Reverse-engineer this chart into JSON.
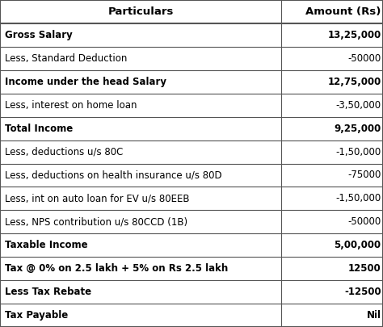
{
  "rows": [
    {
      "label": "Particulars",
      "amount": "Amount (Rs)",
      "bold": true,
      "header": true,
      "label_align": "center",
      "amount_align": "right"
    },
    {
      "label": "Gross Salary",
      "amount": "13,25,000",
      "bold": true,
      "header": false,
      "label_align": "left",
      "amount_align": "right"
    },
    {
      "label": "Less, Standard Deduction",
      "amount": "-50000",
      "bold": false,
      "header": false,
      "label_align": "left",
      "amount_align": "right"
    },
    {
      "label": "Income under the head Salary",
      "amount": "12,75,000",
      "bold": true,
      "header": false,
      "label_align": "left",
      "amount_align": "right"
    },
    {
      "label": "Less, interest on home loan",
      "amount": "-3,50,000",
      "bold": false,
      "header": false,
      "label_align": "left",
      "amount_align": "right"
    },
    {
      "label": "Total Income",
      "amount": "9,25,000",
      "bold": true,
      "header": false,
      "label_align": "left",
      "amount_align": "right"
    },
    {
      "label": "Less, deductions u/s 80C",
      "amount": "-1,50,000",
      "bold": false,
      "header": false,
      "label_align": "left",
      "amount_align": "right"
    },
    {
      "label": "Less, deductions on health insurance u/s 80D",
      "amount": "-75000",
      "bold": false,
      "header": false,
      "label_align": "left",
      "amount_align": "right"
    },
    {
      "label": "Less, int on auto loan for EV u/s 80EEB",
      "amount": "-1,50,000",
      "bold": false,
      "header": false,
      "label_align": "left",
      "amount_align": "right"
    },
    {
      "label": "Less, NPS contribution u/s 80CCD (1B)",
      "amount": "-50000",
      "bold": false,
      "header": false,
      "label_align": "left",
      "amount_align": "right"
    },
    {
      "label": "Taxable Income",
      "amount": "5,00,000",
      "bold": true,
      "header": false,
      "label_align": "left",
      "amount_align": "right"
    },
    {
      "label": "Tax @ 0% on 2.5 lakh + 5% on Rs 2.5 lakh",
      "amount": "12500",
      "bold": true,
      "header": false,
      "label_align": "left",
      "amount_align": "right"
    },
    {
      "label": "Less Tax Rebate",
      "amount": "-12500",
      "bold": true,
      "header": false,
      "label_align": "left",
      "amount_align": "right"
    },
    {
      "label": "Tax Payable",
      "amount": "Nil",
      "bold": true,
      "header": false,
      "label_align": "left",
      "amount_align": "right"
    }
  ],
  "bg_color": "#ffffff",
  "border_color": "#555555",
  "text_color": "#000000",
  "col_split": 0.735,
  "font_size": 8.5,
  "header_font_size": 9.5,
  "fig_width": 4.74,
  "fig_height": 4.05,
  "dpi": 100
}
